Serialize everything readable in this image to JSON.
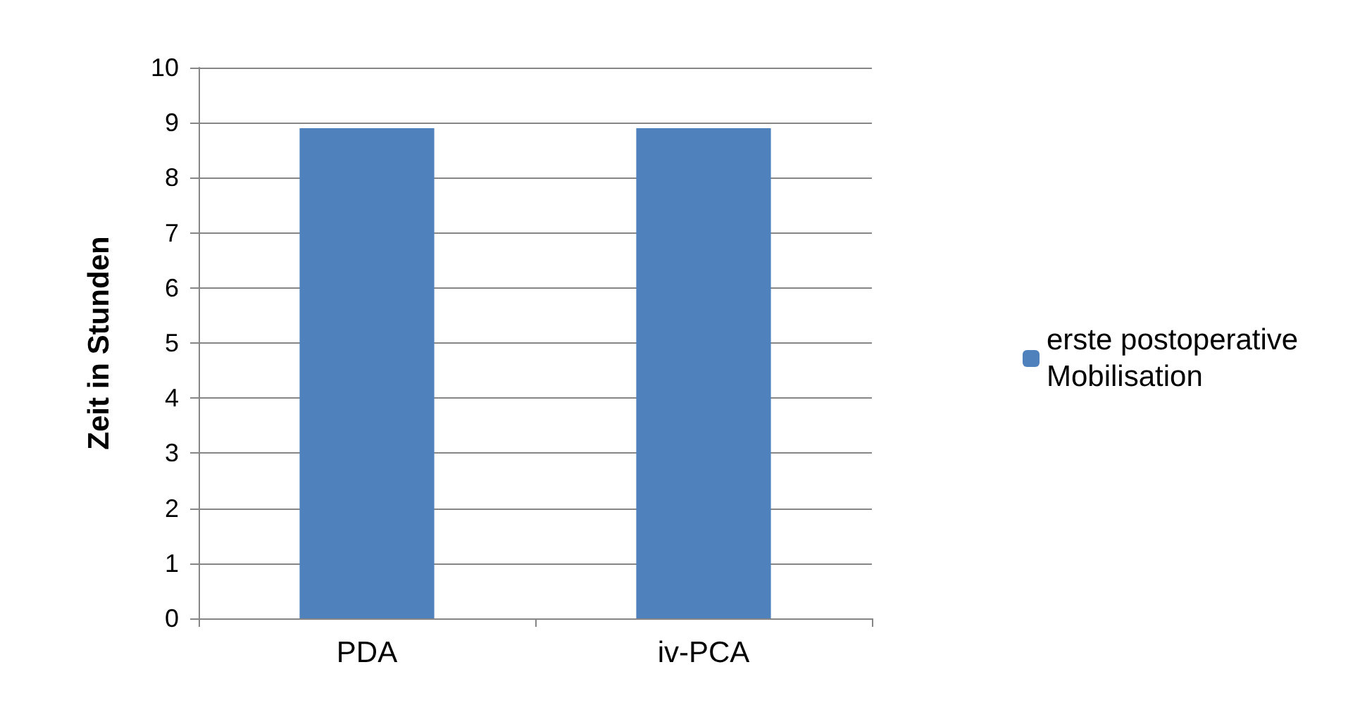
{
  "chart_data": {
    "type": "bar",
    "ylabel": "Zeit in Stunden",
    "categories": [
      "PDA",
      "iv-PCA"
    ],
    "series": [
      {
        "name": "erste postoperative Mobilisation",
        "color": "#4f81bd",
        "values": [
          8.9,
          8.9
        ]
      }
    ],
    "ylim": [
      0,
      10
    ],
    "yticks": [
      0,
      1,
      2,
      3,
      4,
      5,
      6,
      7,
      8,
      9,
      10
    ],
    "grid": "y",
    "legend": "right"
  }
}
